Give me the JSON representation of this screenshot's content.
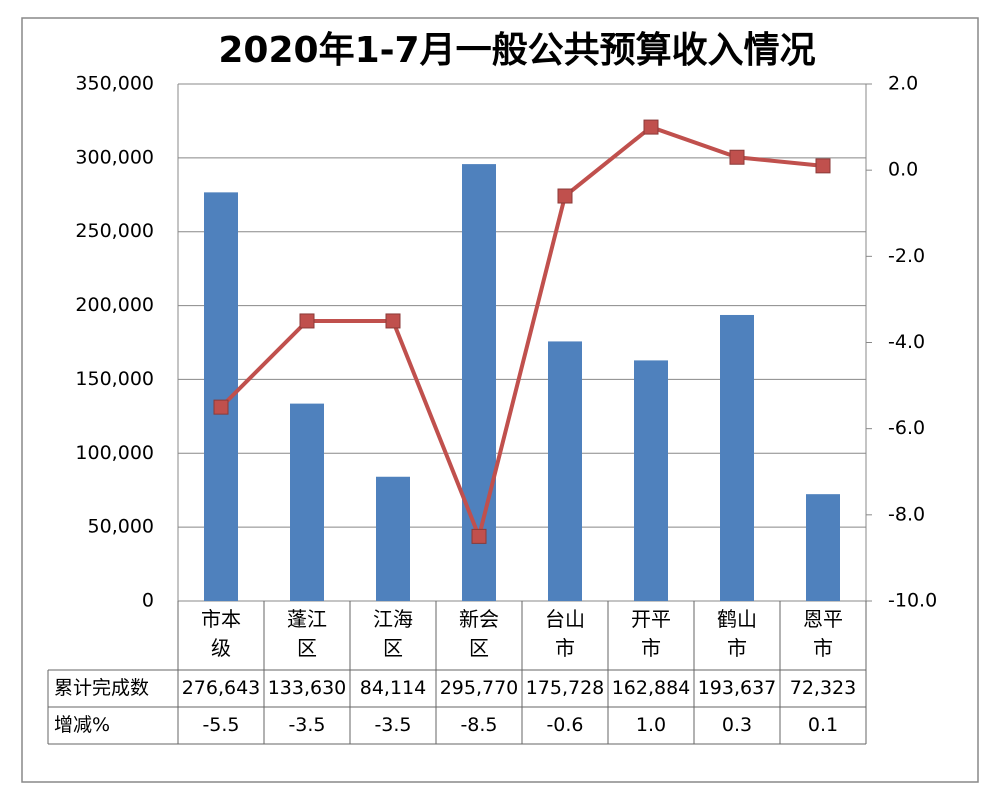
{
  "chart_data": {
    "type": "bar-line",
    "title": "2020年1-7月一般公共预算收入情况",
    "categories": [
      "市本级",
      "蓬江区",
      "江海区",
      "新会区",
      "台山市",
      "开平市",
      "鹤山市",
      "恩平市"
    ],
    "series": [
      {
        "name": "累计完成数",
        "type": "bar",
        "color": "#4f81bd",
        "values": [
          276643,
          133630,
          84114,
          295770,
          175728,
          162884,
          193637,
          72323
        ],
        "value_labels": [
          "276,643",
          "133,630",
          "84,114",
          "295,770",
          "175,728",
          "162,884",
          "193,637",
          "72,323"
        ]
      },
      {
        "name": "增减%",
        "type": "line",
        "axis": "y2",
        "color": "#c0504d",
        "values": [
          -5.5,
          -3.5,
          -3.5,
          -8.5,
          -0.6,
          1.0,
          0.3,
          0.1
        ],
        "value_labels": [
          "-5.5",
          "-3.5",
          "-3.5",
          "-8.5",
          "-0.6",
          "1.0",
          "0.3",
          "0.1"
        ]
      }
    ],
    "ylim": [
      0,
      350000
    ],
    "yticks": [
      0,
      {
        "value": 50000,
        "label": "50,000"
      },
      {
        "value": 100000,
        "label": "100,000"
      },
      {
        "value": 150000,
        "label": "150,000"
      },
      {
        "value": 200000,
        "label": "200,000"
      },
      {
        "value": 250000,
        "label": "250,000"
      },
      {
        "value": 300000,
        "label": "300,000"
      },
      {
        "value": 350000,
        "label": "350,000"
      }
    ],
    "y2lim": [
      -10,
      2
    ],
    "y2ticks": [
      {
        "value": -10,
        "label": "-10.0"
      },
      {
        "value": -8,
        "label": "-8.0"
      },
      {
        "value": -6,
        "label": "-6.0"
      },
      {
        "value": -4,
        "label": "-4.0"
      },
      {
        "value": -2,
        "label": "-2.0"
      },
      {
        "value": 0,
        "label": "0.0"
      },
      {
        "value": 2,
        "label": "2.0"
      }
    ],
    "grid": true
  }
}
